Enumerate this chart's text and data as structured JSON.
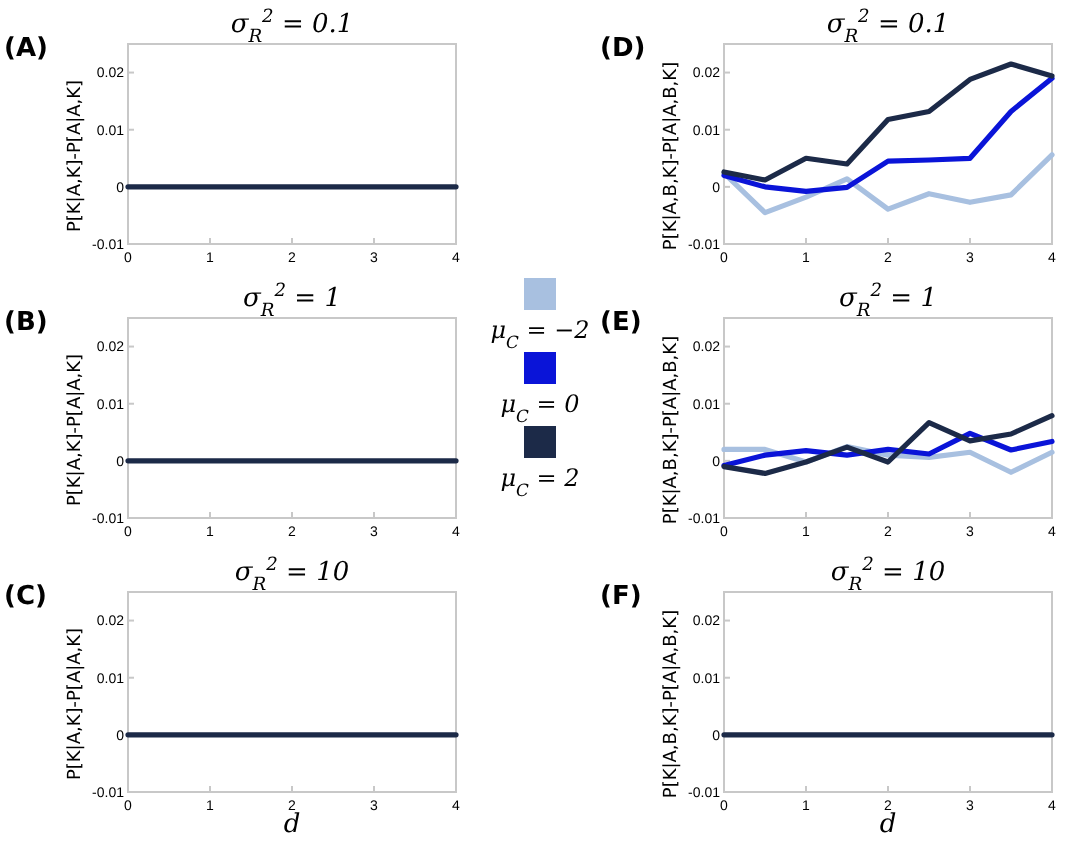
{
  "chart_data": [
    {
      "type": "line",
      "title": "σ$_{R}$$^{2}$ = 0.1",
      "ylabel": "P[K|A,K]-P[A|A,K]",
      "annotations": [
        "(A)"
      ],
      "x": [
        0,
        0.5,
        1,
        1.5,
        2,
        2.5,
        3,
        3.5,
        4
      ],
      "xlim": [
        0,
        4
      ],
      "ylim": [
        -0.01,
        0.025
      ],
      "xticks": [
        0,
        1,
        2,
        3,
        4
      ],
      "yticks": [
        -0.01,
        0,
        0.01,
        0.02
      ],
      "series": [
        {
          "color": "#a8c0e0",
          "values": [
            null,
            null,
            null,
            null,
            null,
            null,
            null,
            null,
            null
          ]
        },
        {
          "color": "#0a14d8",
          "values": [
            null,
            null,
            null,
            null,
            null,
            null,
            null,
            null,
            null
          ]
        },
        {
          "color": "#1c2a48",
          "values": [
            0,
            0,
            0,
            0,
            0,
            0,
            0,
            0,
            0
          ]
        }
      ]
    },
    {
      "type": "line",
      "title": "σ$_{R}$$^{2}$ = 1",
      "ylabel": "P[K|A,K]-P[A|A,K]",
      "annotations": [
        "(B)"
      ],
      "legend": "right",
      "x": [
        0,
        0.5,
        1,
        1.5,
        2,
        2.5,
        3,
        3.5,
        4
      ],
      "xlim": [
        0,
        4
      ],
      "ylim": [
        -0.01,
        0.025
      ],
      "xticks": [
        0,
        1,
        2,
        3,
        4
      ],
      "yticks": [
        -0.01,
        0,
        0.01,
        0.02
      ],
      "series": [
        {
          "name": "μ$_{C}$ = −2",
          "color": "#a8c0e0",
          "values": [
            null,
            null,
            null,
            null,
            null,
            null,
            null,
            null,
            null
          ]
        },
        {
          "name": "μ$_{C}$ = 0",
          "color": "#0a14d8",
          "values": [
            null,
            null,
            null,
            null,
            null,
            null,
            null,
            null,
            null
          ]
        },
        {
          "name": "μ$_{C}$ = 2",
          "color": "#1c2a48",
          "values": [
            0,
            0,
            0,
            0,
            0,
            0,
            0,
            0,
            0
          ]
        }
      ]
    },
    {
      "type": "line",
      "title": "σ$_{R}$$^{2}$ = 10",
      "ylabel": "P[K|A,K]-P[A|A,K]",
      "xlabel": "d",
      "annotations": [
        "(C)"
      ],
      "x": [
        0,
        0.5,
        1,
        1.5,
        2,
        2.5,
        3,
        3.5,
        4
      ],
      "xlim": [
        0,
        4
      ],
      "ylim": [
        -0.01,
        0.025
      ],
      "xticks": [
        0,
        1,
        2,
        3,
        4
      ],
      "yticks": [
        -0.01,
        0,
        0.01,
        0.02
      ],
      "series": [
        {
          "color": "#a8c0e0",
          "values": [
            null,
            null,
            null,
            null,
            null,
            null,
            null,
            null,
            null
          ]
        },
        {
          "color": "#0a14d8",
          "values": [
            null,
            null,
            null,
            null,
            null,
            null,
            null,
            null,
            null
          ]
        },
        {
          "color": "#1c2a48",
          "values": [
            0,
            0,
            0,
            0,
            0,
            0,
            0,
            0,
            0
          ]
        }
      ]
    },
    {
      "type": "line",
      "title": "σ$_{R}$$^{2}$ = 0.1",
      "ylabel": "P[K|A,B,K]-P[A|A,B,K]",
      "annotations": [
        "(D)"
      ],
      "x": [
        0,
        0.5,
        1,
        1.5,
        2,
        2.5,
        3,
        3.5,
        4
      ],
      "xlim": [
        0,
        4
      ],
      "ylim": [
        -0.01,
        0.025
      ],
      "xticks": [
        0,
        1,
        2,
        3,
        4
      ],
      "yticks": [
        -0.01,
        0,
        0.01,
        0.02
      ],
      "series": [
        {
          "color": "#a8c0e0",
          "values": [
            0.0024,
            -0.0045,
            -0.0018,
            0.0014,
            -0.0039,
            -0.0012,
            -0.0027,
            -0.0014,
            0.0056
          ]
        },
        {
          "color": "#0a14d8",
          "values": [
            0.002,
            0,
            -0.0008,
            -0.0001,
            0.0045,
            0.0047,
            0.005,
            0.0132,
            0.019
          ]
        },
        {
          "color": "#1c2a48",
          "values": [
            0.0026,
            0.0012,
            0.005,
            0.004,
            0.0118,
            0.0132,
            0.0188,
            0.0215,
            0.0194
          ]
        }
      ]
    },
    {
      "type": "line",
      "title": "σ$_{R}$$^{2}$ = 1",
      "ylabel": "P[K|A,B,K]-P[A|A,B,K]",
      "annotations": [
        "(E)"
      ],
      "x": [
        0,
        0.5,
        1,
        1.5,
        2,
        2.5,
        3,
        3.5,
        4
      ],
      "xlim": [
        0,
        4
      ],
      "ylim": [
        -0.01,
        0.025
      ],
      "xticks": [
        0,
        1,
        2,
        3,
        4
      ],
      "yticks": [
        -0.01,
        0,
        0.01,
        0.02
      ],
      "series": [
        {
          "color": "#a8c0e0",
          "values": [
            0.002,
            0.002,
            -0.0002,
            0.0025,
            0.001,
            0.0006,
            0.0015,
            -0.002,
            0.0015
          ]
        },
        {
          "color": "#0a14d8",
          "values": [
            -0.0008,
            0.001,
            0.0018,
            0.001,
            0.002,
            0.0012,
            0.0048,
            0.0019,
            0.0034
          ]
        },
        {
          "color": "#1c2a48",
          "values": [
            -0.001,
            -0.0022,
            -0.0002,
            0.0024,
            -0.0002,
            0.0067,
            0.0035,
            0.0047,
            0.0079
          ]
        }
      ]
    },
    {
      "type": "line",
      "title": "σ$_{R}$$^{2}$ = 10",
      "ylabel": "P[K|A,B,K]-P[A|A,B,K]",
      "xlabel": "d",
      "annotations": [
        "(F)"
      ],
      "x": [
        0,
        0.5,
        1,
        1.5,
        2,
        2.5,
        3,
        3.5,
        4
      ],
      "xlim": [
        0,
        4
      ],
      "ylim": [
        -0.01,
        0.025
      ],
      "xticks": [
        0,
        1,
        2,
        3,
        4
      ],
      "yticks": [
        -0.01,
        0,
        0.01,
        0.02
      ],
      "series": [
        {
          "color": "#a8c0e0",
          "values": [
            null,
            null,
            null,
            null,
            null,
            null,
            null,
            null,
            null
          ]
        },
        {
          "color": "#0a14d8",
          "values": [
            null,
            null,
            null,
            null,
            null,
            null,
            null,
            null,
            null
          ]
        },
        {
          "color": "#1c2a48",
          "values": [
            0,
            0,
            0,
            0,
            0,
            0,
            0,
            0,
            0
          ]
        }
      ]
    }
  ]
}
